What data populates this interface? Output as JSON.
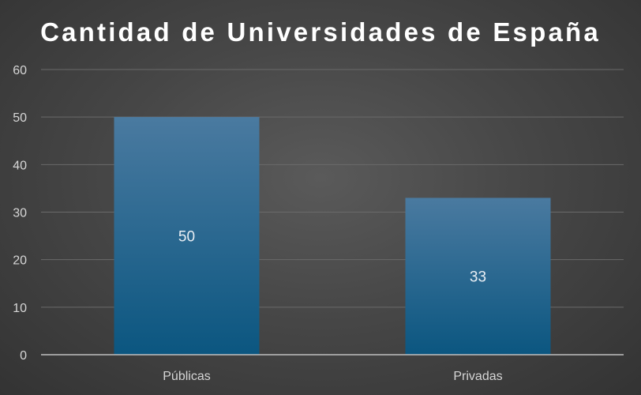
{
  "chart_data": {
    "type": "bar",
    "title": "Cantidad de Universidades de España",
    "xlabel": "",
    "ylabel": "",
    "categories": [
      "Públicas",
      "Privadas"
    ],
    "values": [
      50,
      33
    ],
    "data_labels": [
      "50",
      "33"
    ],
    "ylim": [
      0,
      60
    ],
    "yticks": [
      0,
      10,
      20,
      30,
      40,
      50,
      60
    ],
    "ytick_labels": [
      "0",
      "10",
      "20",
      "30",
      "40",
      "50",
      "60"
    ],
    "grid": true,
    "legend": "none"
  },
  "colors": {
    "bar_top": "#4a7aa0",
    "bar_bottom": "#0b5680",
    "gridline": "#6a6a6a",
    "axis_line": "#bfbfbf"
  }
}
